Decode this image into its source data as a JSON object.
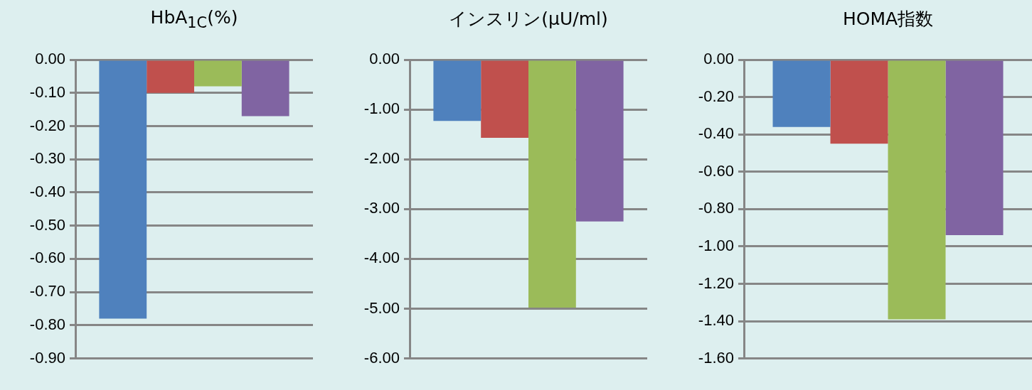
{
  "chart_data": [
    {
      "type": "bar",
      "title": "HbA$_{1C}$(%)",
      "categories": [
        null
      ],
      "grid": "y",
      "legend": false,
      "ylim": [
        -0.9,
        0
      ],
      "yticks": [
        {
          "value": 0,
          "label": "0.00"
        },
        {
          "value": -0.1,
          "label": "-0.10"
        },
        {
          "value": -0.2,
          "label": "-0.20"
        },
        {
          "value": -0.3,
          "label": "-0.30"
        },
        {
          "value": -0.4,
          "label": "-0.40"
        },
        {
          "value": -0.5,
          "label": "-0.50"
        },
        {
          "value": -0.6,
          "label": "-0.60"
        },
        {
          "value": -0.7,
          "label": "-0.70"
        },
        {
          "value": -0.8,
          "label": "-0.80"
        },
        {
          "value": -0.9,
          "label": "-0.90"
        }
      ],
      "series": [
        {
          "color": "#4f81bd",
          "values": [
            -0.78
          ]
        },
        {
          "color": "#c0504d",
          "values": [
            -0.1
          ]
        },
        {
          "color": "#9bbb59",
          "values": [
            -0.08
          ]
        },
        {
          "color": "#8064a2",
          "values": [
            -0.17
          ]
        }
      ]
    },
    {
      "type": "bar",
      "title": "インスリン(μU/ml)",
      "categories": [
        null
      ],
      "grid": "y",
      "legend": false,
      "ylim": [
        -6,
        0
      ],
      "yticks": [
        {
          "value": 0,
          "label": "0.00"
        },
        {
          "value": -1,
          "label": "-1.00"
        },
        {
          "value": -2,
          "label": "-2.00"
        },
        {
          "value": -3,
          "label": "-3.00"
        },
        {
          "value": -4,
          "label": "-4.00"
        },
        {
          "value": -5,
          "label": "-5.00"
        },
        {
          "value": -6,
          "label": "-6.00"
        }
      ],
      "series": [
        {
          "color": "#4f81bd",
          "values": [
            -1.23
          ]
        },
        {
          "color": "#c0504d",
          "values": [
            -1.57
          ]
        },
        {
          "color": "#9bbb59",
          "values": [
            -4.98
          ]
        },
        {
          "color": "#8064a2",
          "values": [
            -3.25
          ]
        }
      ]
    },
    {
      "type": "bar",
      "title": "HOMA指数",
      "categories": [
        null
      ],
      "grid": "y",
      "legend": false,
      "ylim": [
        -1.6,
        0
      ],
      "yticks": [
        {
          "value": 0,
          "label": "0.00"
        },
        {
          "value": -0.2,
          "label": "-0.20"
        },
        {
          "value": -0.4,
          "label": "-0.40"
        },
        {
          "value": -0.6,
          "label": "-0.60"
        },
        {
          "value": -0.8,
          "label": "-0.80"
        },
        {
          "value": -1.0,
          "label": "-1.00"
        },
        {
          "value": -1.2,
          "label": "-1.20"
        },
        {
          "value": -1.4,
          "label": "-1.40"
        },
        {
          "value": -1.6,
          "label": "-1.60"
        }
      ],
      "series": [
        {
          "color": "#4f81bd",
          "values": [
            -0.36
          ]
        },
        {
          "color": "#c0504d",
          "values": [
            -0.45
          ]
        },
        {
          "color": "#9bbb59",
          "values": [
            -1.39
          ]
        },
        {
          "color": "#8064a2",
          "values": [
            -0.94
          ]
        }
      ]
    }
  ]
}
